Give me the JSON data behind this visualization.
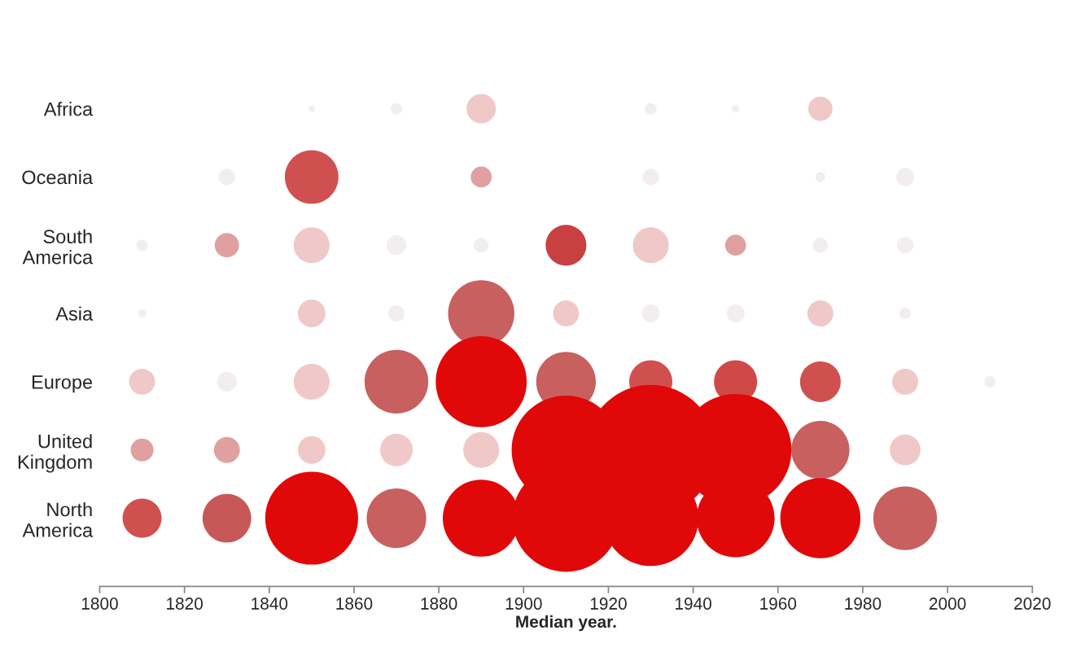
{
  "chart_data": {
    "type": "bubble",
    "orientation": "horizontal",
    "xlabel": "Median year.",
    "xlim": [
      1800,
      2020
    ],
    "xticks": [
      1800,
      1820,
      1840,
      1860,
      1880,
      1900,
      1920,
      1940,
      1960,
      1980,
      2000,
      2020
    ],
    "categories": [
      "Africa",
      "Oceania",
      "South America",
      "Asia",
      "Europe",
      "United Kingdom",
      "North America"
    ],
    "legend": false,
    "grid": false,
    "series": [
      {
        "values": [
          null,
          null,
          1810,
          1810,
          1810,
          1810,
          1810
        ],
        "sizes": [
          null,
          null,
          0.0077,
          0.0039,
          0.04,
          0.031,
          0.09
        ],
        "colors": [
          null,
          null,
          "#f2eeee",
          "#f2eeee",
          "#f0c8c8",
          "#e0a0a0",
          "#d05050"
        ]
      },
      {
        "values": [
          null,
          1830,
          1830,
          null,
          1830,
          1830,
          1830
        ],
        "sizes": [
          null,
          0.016,
          0.035,
          null,
          0.023,
          0.04,
          0.14
        ],
        "colors": [
          null,
          "#f2eeee",
          "#e0a0a0",
          null,
          "#f2eeee",
          "#e0a0a0",
          "#c85858"
        ]
      },
      {
        "values": [
          1850,
          1850,
          1850,
          1850,
          1850,
          1850,
          1850
        ],
        "sizes": [
          0.0025,
          0.17,
          0.076,
          0.045,
          0.076,
          0.045,
          0.51
        ],
        "colors": [
          "#f2eeee",
          "#d05050",
          "#f0c8c8",
          "#f0c8c8",
          "#f0c8c8",
          "#f0c8c8",
          "#e00808"
        ]
      },
      {
        "values": [
          1870,
          null,
          1870,
          1870,
          1870,
          1870,
          1870
        ],
        "sizes": [
          0.0077,
          null,
          0.023,
          0.016,
          0.24,
          0.063,
          0.21
        ],
        "colors": [
          "#f2eeee",
          null,
          "#f2eeee",
          "#f2eeee",
          "#c86060",
          "#f0c8c8",
          "#c86060"
        ]
      },
      {
        "values": [
          1890,
          1890,
          1890,
          1890,
          1890,
          1890,
          1890
        ],
        "sizes": [
          0.051,
          0.026,
          0.013,
          0.26,
          0.49,
          0.076,
          0.35
        ],
        "colors": [
          "#f0c8c8",
          "#e0a0a0",
          "#f2eeee",
          "#c86060",
          "#e00808",
          "#f0c8c8",
          "#e00808"
        ]
      },
      {
        "values": [
          null,
          null,
          1910,
          1910,
          1910,
          1910,
          1910
        ],
        "sizes": [
          null,
          null,
          0.098,
          0.04,
          0.21,
          0.7,
          0.68
        ],
        "colors": [
          null,
          null,
          "#c84040",
          "#f0c8c8",
          "#c86060",
          "#e00808",
          "#e00808"
        ]
      },
      {
        "values": [
          1930,
          1930,
          1930,
          1930,
          1930,
          1930,
          1930
        ],
        "sizes": [
          0.0077,
          0.016,
          0.076,
          0.019,
          0.11,
          1,
          0.54
        ],
        "colors": [
          "#f2eeee",
          "#f2eeee",
          "#f0c8c8",
          "#f2eeee",
          "#d05050",
          "#e00808",
          "#e00808"
        ]
      },
      {
        "values": [
          1950,
          null,
          1950,
          1950,
          1950,
          1950,
          1950
        ],
        "sizes": [
          0.0032,
          null,
          0.026,
          0.019,
          0.11,
          0.74,
          0.36
        ],
        "colors": [
          "#f2eeee",
          null,
          "#e0a0a0",
          "#f2eeee",
          "#d04848",
          "#e00808",
          "#e00808"
        ]
      },
      {
        "values": [
          1970,
          1970,
          1970,
          1970,
          1970,
          1970,
          1970
        ],
        "sizes": [
          0.035,
          0.0056,
          0.013,
          0.04,
          0.098,
          0.2,
          0.38
        ],
        "colors": [
          "#f0c8c8",
          "#f2eeee",
          "#f2eeee",
          "#f0c8c8",
          "#d05050",
          "#c86060",
          "#e00808"
        ]
      },
      {
        "values": [
          null,
          1990,
          1990,
          1990,
          1990,
          1990,
          1990
        ],
        "sizes": [
          null,
          0.019,
          0.016,
          0.0077,
          0.04,
          0.056,
          0.24
        ],
        "colors": [
          null,
          "#f2eeee",
          "#f2eeee",
          "#f2eeee",
          "#f0c8c8",
          "#f0c8c8",
          "#c86060"
        ]
      },
      {
        "values": [
          null,
          null,
          null,
          null,
          2010,
          null,
          null
        ],
        "sizes": [
          null,
          null,
          null,
          null,
          0.0077,
          null,
          null
        ],
        "colors": [
          null,
          null,
          null,
          null,
          "#f2eeee",
          null,
          null
        ]
      }
    ]
  }
}
